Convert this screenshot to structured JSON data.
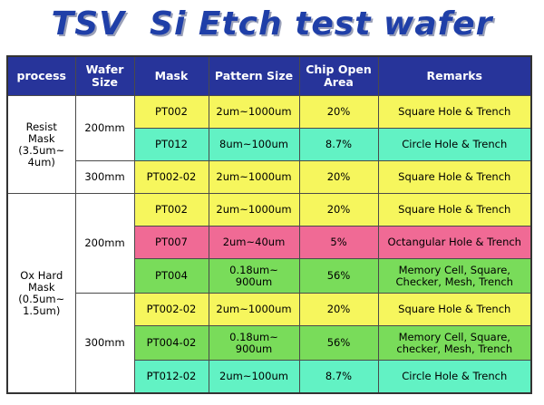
{
  "title": "TSV  Si Etch test wafer",
  "colors": {
    "header": "#27349a",
    "yellow": "#f6f65d",
    "cyan": "#62f2c4",
    "pink": "#f06a95",
    "green": "#79dc5a",
    "title": "#1f3fa8"
  },
  "headers": {
    "process": "process",
    "wafer_size": "Wafer\nSize",
    "mask": "Mask",
    "pattern_size": "Pattern Size",
    "chip_open_area": "Chip Open\nArea",
    "remarks": "Remarks"
  },
  "groups": {
    "resist": {
      "process": "Resist\nMask\n(3.5um~\n4um)",
      "w200": "200mm",
      "w300": "300mm"
    },
    "oxide": {
      "process": "Ox Hard\nMask\n(0.5um~\n1.5um)",
      "w200": "200mm",
      "w300": "300mm"
    }
  },
  "rows": [
    {
      "mask": "PT002",
      "pattern_size": "2um~1000um",
      "open_area": "20%",
      "remarks": "Square Hole & Trench",
      "color": "yellow"
    },
    {
      "mask": "PT012",
      "pattern_size": "8um~100um",
      "open_area": "8.7%",
      "remarks": "Circle Hole & Trench",
      "color": "cyan"
    },
    {
      "mask": "PT002-02",
      "pattern_size": "2um~1000um",
      "open_area": "20%",
      "remarks": "Square Hole & Trench",
      "color": "yellow"
    },
    {
      "mask": "PT002",
      "pattern_size": "2um~1000um",
      "open_area": "20%",
      "remarks": "Square Hole & Trench",
      "color": "yellow"
    },
    {
      "mask": "PT007",
      "pattern_size": "2um~40um",
      "open_area": "5%",
      "remarks": "Octangular Hole & Trench",
      "color": "pink"
    },
    {
      "mask": "PT004",
      "pattern_size": "0.18um~\n900um",
      "open_area": "56%",
      "remarks": "Memory Cell, Square,\nChecker, Mesh, Trench",
      "color": "green"
    },
    {
      "mask": "PT002-02",
      "pattern_size": "2um~1000um",
      "open_area": "20%",
      "remarks": "Square Hole & Trench",
      "color": "yellow"
    },
    {
      "mask": "PT004-02",
      "pattern_size": "0.18um~\n900um",
      "open_area": "56%",
      "remarks": "Memory Cell, Square,\nchecker, Mesh, Trench",
      "color": "green"
    },
    {
      "mask": "PT012-02",
      "pattern_size": "2um~100um",
      "open_area": "8.7%",
      "remarks": "Circle Hole & Trench",
      "color": "cyan"
    }
  ]
}
